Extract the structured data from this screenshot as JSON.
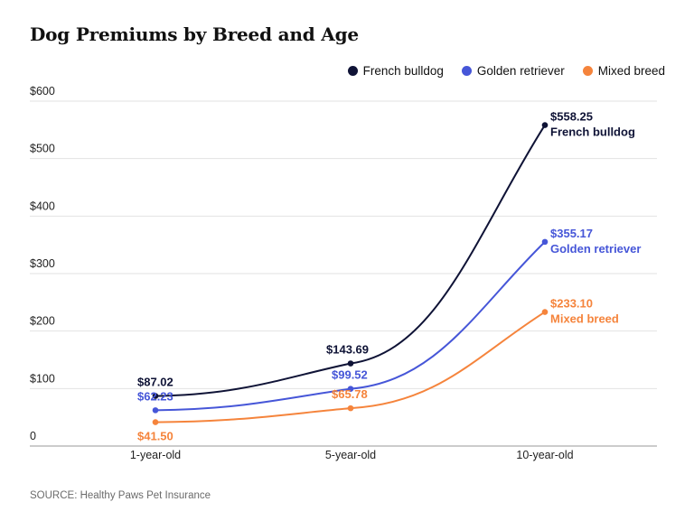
{
  "title": "Dog Premiums by Breed and Age",
  "source": "SOURCE: Healthy Paws Pet Insurance",
  "chart_data": {
    "type": "line",
    "categories": [
      "1-year-old",
      "5-year-old",
      "10-year-old"
    ],
    "y_tick_labels": [
      "0",
      "$100",
      "$200",
      "$300",
      "$400",
      "$500",
      "$600"
    ],
    "ylim": [
      0,
      600
    ],
    "grid": true,
    "legend_position": "top-right",
    "series": [
      {
        "name": "French bulldog",
        "values": [
          87.02,
          143.69,
          558.25
        ],
        "labels": [
          "$87.02",
          "$143.69",
          "$558.25"
        ],
        "color": "#0f1336"
      },
      {
        "name": "Golden retriever",
        "values": [
          62.23,
          99.52,
          355.17
        ],
        "labels": [
          "$62.23",
          "$99.52",
          "$355.17"
        ],
        "color": "#4656d8"
      },
      {
        "name": "Mixed breed",
        "values": [
          41.5,
          65.78,
          233.1
        ],
        "labels": [
          "$41.50",
          "$65.78",
          "$233.10"
        ],
        "color": "#f5843c"
      }
    ]
  }
}
